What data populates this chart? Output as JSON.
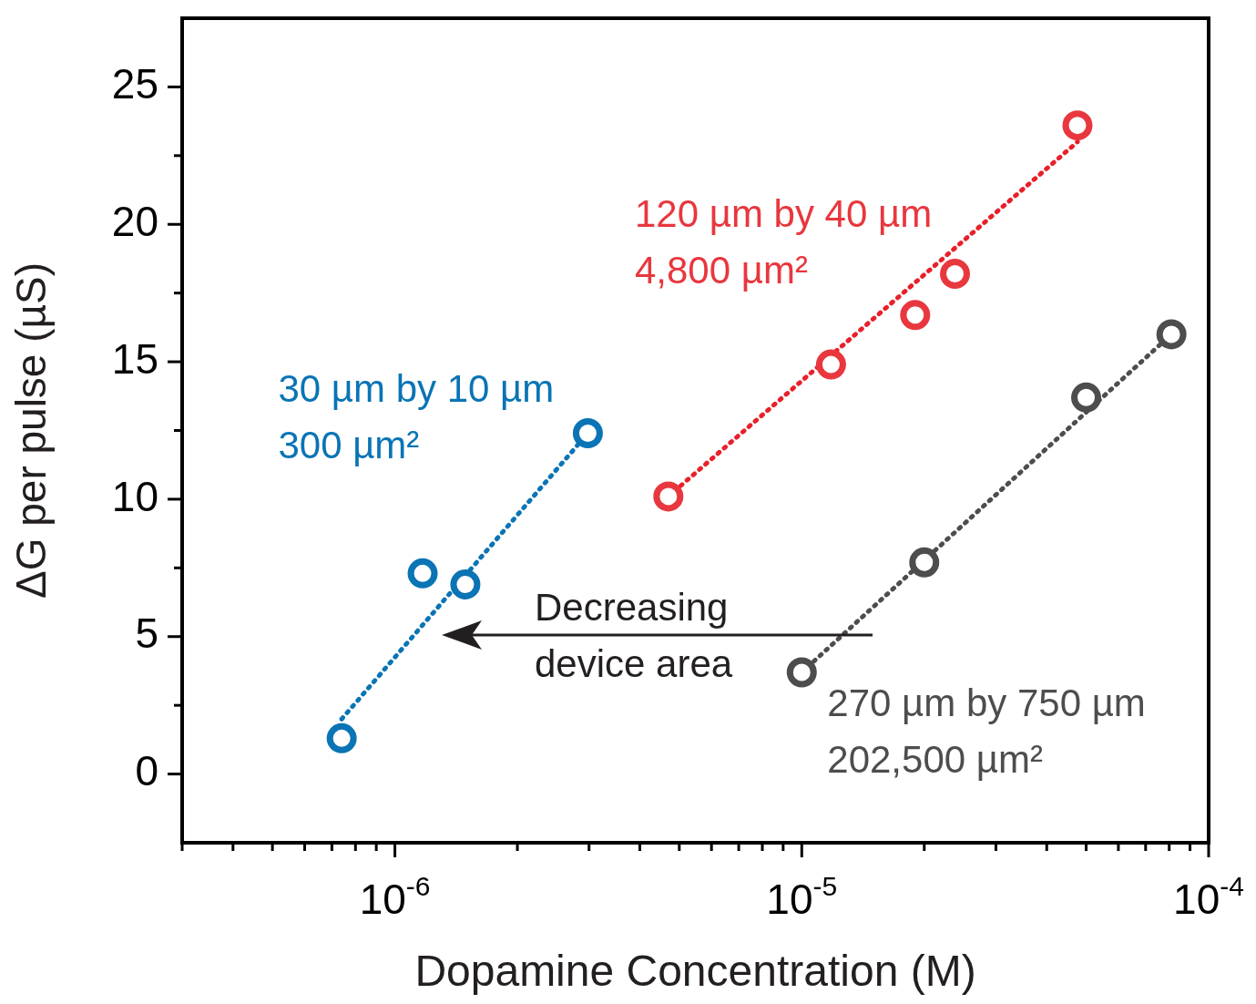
{
  "chart_data": {
    "type": "scatter",
    "xlabel": "Dopamine Concentration (M)",
    "ylabel": "ΔG per pulse (µS)",
    "log": "x",
    "marker": "circle",
    "legend": false,
    "grid": false,
    "xlim": [
      3e-07,
      0.0001
    ],
    "xticks": [
      {
        "value": 3e-07,
        "label": null
      },
      {
        "value": 4e-07,
        "label": null
      },
      {
        "value": 5e-07,
        "label": null
      },
      {
        "value": 6e-07,
        "label": null
      },
      {
        "value": 7e-07,
        "label": null
      },
      {
        "value": 8e-07,
        "label": null
      },
      {
        "value": 9e-07,
        "label": null
      },
      {
        "value": 1e-06,
        "label": "10$^{-6}$"
      },
      {
        "value": 2e-06,
        "label": null
      },
      {
        "value": 3e-06,
        "label": null
      },
      {
        "value": 4e-06,
        "label": null
      },
      {
        "value": 5e-06,
        "label": null
      },
      {
        "value": 6e-06,
        "label": null
      },
      {
        "value": 7e-06,
        "label": null
      },
      {
        "value": 8e-06,
        "label": null
      },
      {
        "value": 9e-06,
        "label": null
      },
      {
        "value": 1e-05,
        "label": "10$^{-5}$"
      },
      {
        "value": 2e-05,
        "label": null
      },
      {
        "value": 3e-05,
        "label": null
      },
      {
        "value": 4e-05,
        "label": null
      },
      {
        "value": 5e-05,
        "label": null
      },
      {
        "value": 6e-05,
        "label": null
      },
      {
        "value": 7e-05,
        "label": null
      },
      {
        "value": 8e-05,
        "label": null
      },
      {
        "value": 9e-05,
        "label": null
      },
      {
        "value": 0.0001,
        "label": "10$^{-4}$"
      }
    ],
    "ylim": [
      -2.5,
      27.5
    ],
    "yticks": [
      0,
      {
        "value": 2.5,
        "label": null
      },
      5,
      {
        "value": 7.5,
        "label": null
      },
      10,
      {
        "value": 12.5,
        "label": null
      },
      15,
      {
        "value": 17.5,
        "label": null
      },
      20,
      {
        "value": 22.5,
        "label": null
      },
      25
    ],
    "series": [
      {
        "name": "30 µm by 10 µm\n300 µm²",
        "color": "#0a74b5",
        "x": [
          7.4e-07,
          1.17e-06,
          1.49e-06,
          2.98e-06
        ],
        "values": [
          1.3,
          7.3,
          6.9,
          12.4
        ]
      },
      {
        "name": "120 µm by 40 µm\n4,800 µm²",
        "color": "#e8373e",
        "x": [
          4.7e-06,
          1.18e-05,
          1.9e-05,
          2.38e-05,
          4.76e-05
        ],
        "values": [
          10.1,
          14.9,
          16.7,
          18.2,
          23.6
        ]
      },
      {
        "name": "270 µm by 750 µm\n202,500 µm²",
        "color": "#4d4d4d",
        "x": [
          1e-05,
          2e-05,
          5e-05,
          8.1e-05
        ],
        "values": [
          3.7,
          7.7,
          13.7,
          16.0
        ]
      },
      {
        "type": "line",
        "color": "#0a74b5",
        "marker": "none",
        "line_style": "dotted",
        "x": [
          7.4e-07,
          2.98e-06
        ],
        "values": [
          2.0,
          12.4
        ]
      },
      {
        "type": "line",
        "color": "#e8202a",
        "marker": "none",
        "line_style": "dotted",
        "x": [
          4.7e-06,
          4.76e-05
        ],
        "values": [
          10.1,
          23.0
        ]
      },
      {
        "type": "line",
        "color": "#4d4d4d",
        "marker": "none",
        "line_style": "dotted",
        "x": [
          1e-05,
          8.1e-05
        ],
        "values": [
          3.7,
          16.0
        ]
      }
    ],
    "annotations": [
      "Decreasing\ndevice area"
    ]
  }
}
